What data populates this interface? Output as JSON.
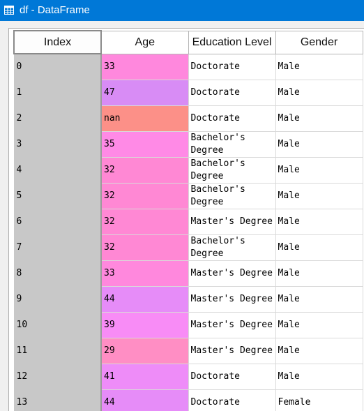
{
  "window": {
    "title": "df - DataFrame"
  },
  "columns": [
    "Index",
    "Age",
    "Education Level",
    "Gender"
  ],
  "rows": [
    {
      "index": "0",
      "age": "33",
      "age_color": "#ff88dd",
      "education": "Doctorate",
      "gender": "Male"
    },
    {
      "index": "1",
      "age": "47",
      "age_color": "#d88cf5",
      "education": "Doctorate",
      "gender": "Male"
    },
    {
      "index": "2",
      "age": "nan",
      "age_color": "#fc9088",
      "education": "Doctorate",
      "gender": "Male"
    },
    {
      "index": "3",
      "age": "35",
      "age_color": "#ff8ae6",
      "education": "Bachelor's Degree",
      "gender": "Male"
    },
    {
      "index": "4",
      "age": "32",
      "age_color": "#ff88d4",
      "education": "Bachelor's Degree",
      "gender": "Male"
    },
    {
      "index": "5",
      "age": "32",
      "age_color": "#ff88d4",
      "education": "Bachelor's Degree",
      "gender": "Male"
    },
    {
      "index": "6",
      "age": "32",
      "age_color": "#ff88d4",
      "education": "Master's Degree",
      "gender": "Male"
    },
    {
      "index": "7",
      "age": "32",
      "age_color": "#ff88d4",
      "education": "Bachelor's Degree",
      "gender": "Male"
    },
    {
      "index": "8",
      "age": "33",
      "age_color": "#ff88dd",
      "education": "Master's Degree",
      "gender": "Male"
    },
    {
      "index": "9",
      "age": "44",
      "age_color": "#e68cf8",
      "education": "Master's Degree",
      "gender": "Male"
    },
    {
      "index": "10",
      "age": "39",
      "age_color": "#f88cf6",
      "education": "Master's Degree",
      "gender": "Male"
    },
    {
      "index": "11",
      "age": "29",
      "age_color": "#ff8ec4",
      "education": "Master's Degree",
      "gender": "Male"
    },
    {
      "index": "12",
      "age": "41",
      "age_color": "#ee8cf8",
      "education": "Doctorate",
      "gender": "Male"
    },
    {
      "index": "13",
      "age": "44",
      "age_color": "#e68cf8",
      "education": "Doctorate",
      "gender": "Female"
    }
  ]
}
